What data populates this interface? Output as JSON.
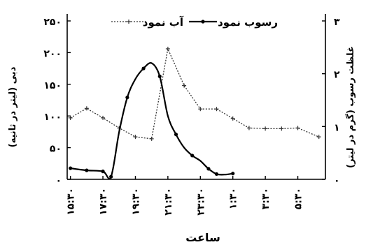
{
  "chart_data": {
    "type": "line",
    "xlabel": "ساعت",
    "ylabel_left": "دبی (لیتر در ثانیه)",
    "ylabel_right": "غلظت رسوب (گرم در لیتر)",
    "x_ticks": [
      "۱۵:۳۰",
      "۱۷:۳۰",
      "۱۹:۳۰",
      "۲۱:۳۰",
      "۲۳:۳۰",
      "۱:۳۰",
      "۳:۳۰",
      "۵:۳۰"
    ],
    "x_tick_hours": [
      15.5,
      17.5,
      19.5,
      21.5,
      23.5,
      25.5,
      27.5,
      29.5
    ],
    "xlim_hours": [
      15.3,
      31.2
    ],
    "y_left_ticks": [
      "۰",
      "۵۰",
      "۱۰۰",
      "۱۵۰",
      "۲۰۰",
      "۲۵۰"
    ],
    "y_left_values": [
      0,
      50,
      100,
      150,
      200,
      250
    ],
    "ylim_left": [
      0,
      250
    ],
    "y_right_ticks": [
      "۰",
      "۱",
      "۲",
      "۳"
    ],
    "y_right_values": [
      0,
      1,
      2,
      3
    ],
    "ylim_right": [
      0,
      3
    ],
    "legend_position": "top",
    "series": [
      {
        "name": "آب نمود",
        "axis": "left",
        "style": "dotted",
        "marker": "plus",
        "x": [
          15.5,
          16.5,
          17.5,
          18.5,
          19.5,
          20.5,
          21.5,
          22.5,
          23.5,
          24.5,
          25.5,
          26.5,
          27.5,
          28.5,
          29.5,
          30.8
        ],
        "y": [
          97,
          112,
          97,
          81,
          67,
          64,
          206,
          148,
          111,
          111,
          96,
          81,
          80,
          80,
          81,
          67
        ]
      },
      {
        "name": "رسوب نمود",
        "axis": "right",
        "style": "solid",
        "marker": "dot",
        "x": [
          15.5,
          16.5,
          17.5,
          18.0,
          18.5,
          19.0,
          19.5,
          20.0,
          20.5,
          21.0,
          21.5,
          22.0,
          22.5,
          23.0,
          23.5,
          24.0,
          24.5,
          25.0,
          25.5
        ],
        "y": [
          0.21,
          0.17,
          0.15,
          0.05,
          0.9,
          1.55,
          1.9,
          2.1,
          2.2,
          1.95,
          1.2,
          0.85,
          0.6,
          0.45,
          0.35,
          0.2,
          0.1,
          0.09,
          0.11
        ],
        "marker_indices": [
          0,
          1,
          2,
          3,
          5,
          7,
          9,
          11,
          13,
          15,
          16,
          18
        ]
      }
    ]
  }
}
